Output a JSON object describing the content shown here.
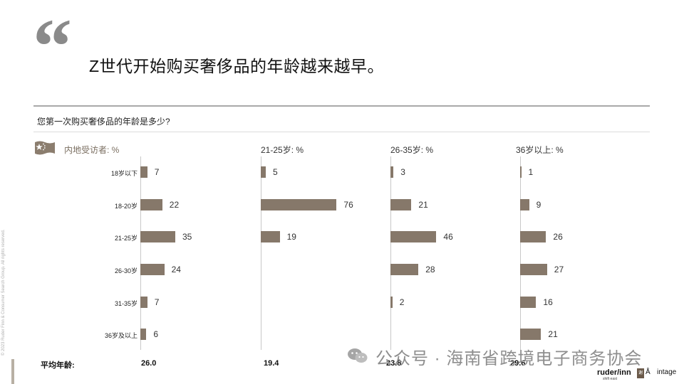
{
  "header": {
    "quote_mark": "“",
    "title": "Z世代开始购买奢侈品的年龄越来越早。",
    "question": "您第一次购买奢侈品的年龄是多少?"
  },
  "chart_data": {
    "type": "bar",
    "orientation": "horizontal",
    "categories": [
      "18岁以下",
      "18-20岁",
      "21-25岁",
      "26-30岁",
      "31-35岁",
      "36岁及以上"
    ],
    "series": [
      {
        "name": "内地受访者: %",
        "values": [
          7,
          22,
          35,
          24,
          7,
          6
        ],
        "average": "26.0"
      },
      {
        "name": "21-25岁: %",
        "values": [
          5,
          76,
          19,
          null,
          null,
          null
        ],
        "average": "19.4"
      },
      {
        "name": "26-35岁: %",
        "values": [
          3,
          21,
          46,
          28,
          2,
          null
        ],
        "average": "23.8"
      },
      {
        "name": "36岁以上: %",
        "values": [
          1,
          9,
          26,
          27,
          16,
          21
        ],
        "average": "29.6"
      }
    ],
    "average_label": "平均年龄:",
    "bar_color": "#86786a",
    "grid": false
  },
  "footer": {
    "side_note": "© 2023 Ruder Finn & Consumer Search Group. All rights reserved.",
    "watermark": "公众号 · 海南省跨境电子商务协会",
    "logo_primary": "ruder/inn",
    "logo_sub": "shift east",
    "logo_mark": "谢",
    "logo_glyph": "Å",
    "logo_secondary": "intage"
  }
}
